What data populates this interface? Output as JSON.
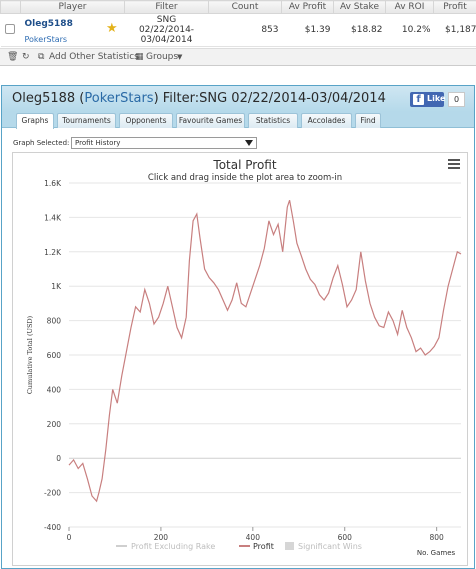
{
  "stats": {
    "headers": [
      "Player",
      "Filter",
      "Count",
      "Av Profit",
      "Av Stake",
      "Av ROI",
      "Profit"
    ],
    "row": {
      "player": "Oleg5188",
      "site": "PokerStars",
      "filter": [
        "SNG",
        "02/22/2014-",
        "03/04/2014"
      ],
      "count": "853",
      "av_profit": "$1.39",
      "av_stake": "$18.82",
      "av_roi": "10.2%",
      "profit": "$1,187"
    },
    "toolbar": {
      "add_other": "Add Other Statistics",
      "groups": "Groups"
    }
  },
  "widget": {
    "title_player": "Oleg5188 (",
    "title_site": "PokerStars",
    "title_filter": ") Filter:SNG 02/22/2014-03/04/2014",
    "fb_like": "Like",
    "fb_count": "0",
    "tabs": [
      "Graphs",
      "Tournaments",
      "Opponents",
      "Favourite Games",
      "Statistics",
      "Accolades",
      "Find"
    ],
    "graph_selected_label": "Graph Selected:",
    "graph_selected_value": "Profit History"
  },
  "chart_data": {
    "type": "line",
    "title": "Total Profit",
    "subtitle": "Click and drag inside the plot area to zoom-in",
    "xlabel": "No. Games",
    "ylabel": "Cumulative Total (USD)",
    "xlim": [
      0,
      853
    ],
    "ylim": [
      -400,
      1600
    ],
    "x_ticks": [
      0,
      200,
      400,
      600,
      800
    ],
    "y_ticks": [
      -400,
      -200,
      0,
      200,
      400,
      600,
      800,
      1000,
      1200,
      1400,
      1600
    ],
    "y_tick_labels": [
      "-400",
      "-200",
      "0",
      "200",
      "400",
      "600",
      "800",
      "1K",
      "1.2K",
      "1.4K",
      "1.6K"
    ],
    "legend": [
      "Profit Excluding Rake",
      "Profit",
      "Significant Wins"
    ],
    "legend_position": "bottom",
    "series": [
      {
        "name": "Profit",
        "color": "#c87f7f",
        "points": [
          [
            0,
            -40
          ],
          [
            10,
            -10
          ],
          [
            20,
            -60
          ],
          [
            30,
            -30
          ],
          [
            40,
            -120
          ],
          [
            50,
            -220
          ],
          [
            60,
            -250
          ],
          [
            65,
            -200
          ],
          [
            72,
            -120
          ],
          [
            80,
            50
          ],
          [
            88,
            250
          ],
          [
            95,
            400
          ],
          [
            105,
            320
          ],
          [
            115,
            480
          ],
          [
            125,
            620
          ],
          [
            135,
            760
          ],
          [
            145,
            880
          ],
          [
            155,
            850
          ],
          [
            165,
            980
          ],
          [
            175,
            900
          ],
          [
            185,
            780
          ],
          [
            195,
            820
          ],
          [
            205,
            900
          ],
          [
            215,
            1000
          ],
          [
            225,
            880
          ],
          [
            235,
            760
          ],
          [
            245,
            700
          ],
          [
            255,
            820
          ],
          [
            262,
            1150
          ],
          [
            270,
            1380
          ],
          [
            278,
            1420
          ],
          [
            285,
            1280
          ],
          [
            295,
            1100
          ],
          [
            305,
            1050
          ],
          [
            315,
            1020
          ],
          [
            325,
            980
          ],
          [
            335,
            920
          ],
          [
            345,
            860
          ],
          [
            355,
            920
          ],
          [
            365,
            1020
          ],
          [
            375,
            900
          ],
          [
            385,
            880
          ],
          [
            395,
            960
          ],
          [
            405,
            1040
          ],
          [
            415,
            1120
          ],
          [
            425,
            1220
          ],
          [
            435,
            1380
          ],
          [
            445,
            1300
          ],
          [
            455,
            1360
          ],
          [
            465,
            1200
          ],
          [
            475,
            1460
          ],
          [
            480,
            1500
          ],
          [
            488,
            1380
          ],
          [
            496,
            1250
          ],
          [
            505,
            1180
          ],
          [
            515,
            1100
          ],
          [
            525,
            1040
          ],
          [
            535,
            1010
          ],
          [
            545,
            950
          ],
          [
            555,
            920
          ],
          [
            565,
            960
          ],
          [
            575,
            1050
          ],
          [
            585,
            1120
          ],
          [
            595,
            1010
          ],
          [
            605,
            880
          ],
          [
            615,
            920
          ],
          [
            625,
            980
          ],
          [
            635,
            1200
          ],
          [
            645,
            1030
          ],
          [
            655,
            900
          ],
          [
            665,
            820
          ],
          [
            675,
            770
          ],
          [
            685,
            760
          ],
          [
            695,
            850
          ],
          [
            705,
            800
          ],
          [
            715,
            720
          ],
          [
            725,
            860
          ],
          [
            735,
            760
          ],
          [
            745,
            700
          ],
          [
            755,
            620
          ],
          [
            765,
            640
          ],
          [
            775,
            600
          ],
          [
            785,
            620
          ],
          [
            795,
            650
          ],
          [
            805,
            700
          ],
          [
            815,
            860
          ],
          [
            825,
            1000
          ],
          [
            835,
            1100
          ],
          [
            845,
            1200
          ],
          [
            853,
            1187
          ]
        ]
      }
    ]
  }
}
